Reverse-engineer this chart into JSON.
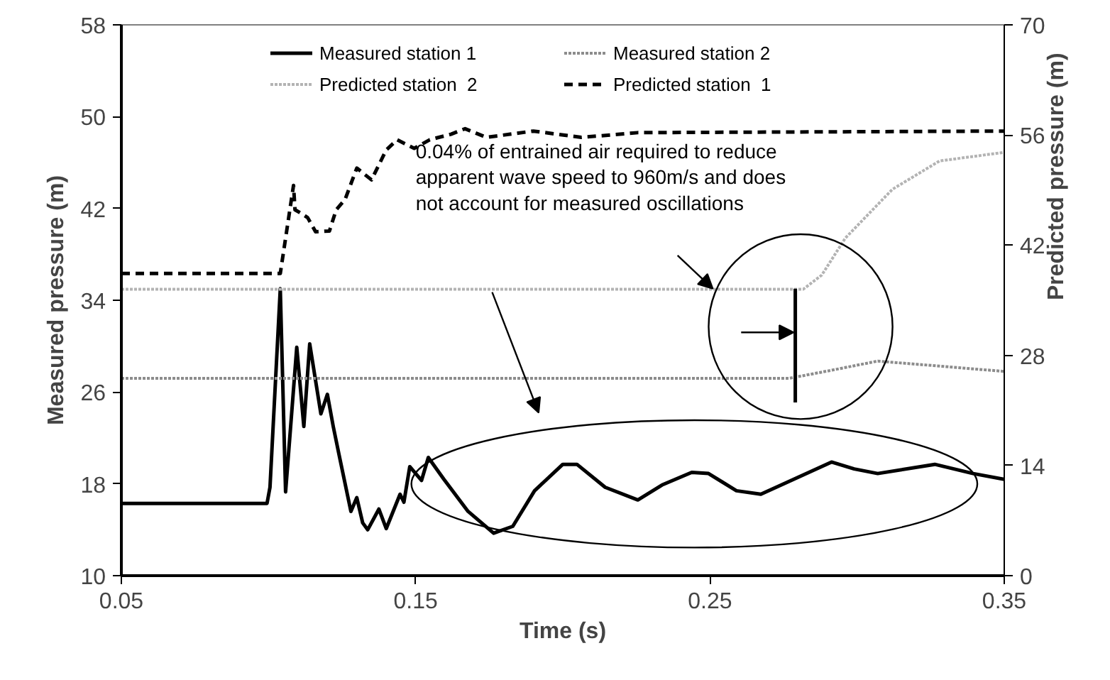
{
  "chart_data": {
    "type": "line",
    "xlabel": "Time (s)",
    "ylabel": "Measured pressure (m)",
    "y2label": "Predicted pressure (m)",
    "xlim": [
      0.05,
      0.35
    ],
    "xticks": [
      0.05,
      0.15,
      0.25,
      0.35
    ],
    "ylim": [
      10,
      58
    ],
    "yticks": [
      10,
      18,
      26,
      34,
      42,
      50,
      58
    ],
    "y2lim": [
      0,
      70
    ],
    "y2ticks": [
      0,
      14,
      28,
      42,
      56,
      70
    ],
    "grid": false,
    "legend": "top",
    "marker": "none",
    "series": [
      {
        "name": "Measured station 1",
        "color": "#000000",
        "line_style": "solid",
        "x": [
          0.05,
          0.0995,
          0.1005,
          0.104,
          0.1058,
          0.1096,
          0.112,
          0.114,
          0.1178,
          0.12,
          0.122,
          0.124,
          0.128,
          0.13,
          0.132,
          0.1337,
          0.1375,
          0.14,
          0.1447,
          0.146,
          0.148,
          0.152,
          0.1543,
          0.1596,
          0.1678,
          0.1765,
          0.183,
          0.1904,
          0.2,
          0.2048,
          0.2144,
          0.2255,
          0.2337,
          0.2438,
          0.2495,
          0.259,
          0.2673,
          0.275,
          0.2913,
          0.299,
          0.307,
          0.3264,
          0.3394,
          0.35
        ],
        "values": [
          16.3,
          16.3,
          17.7,
          35,
          17.3,
          29.9,
          23,
          30.2,
          24.1,
          25.8,
          23,
          20.5,
          15.6,
          16.8,
          14.6,
          14,
          15.8,
          14.1,
          17.1,
          16.4,
          19.5,
          18.3,
          20.3,
          18.4,
          15.6,
          13.7,
          14.3,
          17.4,
          19.7,
          19.7,
          17.7,
          16.6,
          17.9,
          19,
          18.9,
          17.4,
          17.1,
          18,
          19.9,
          19.3,
          18.9,
          19.7,
          18.9,
          18.4
        ]
      },
      {
        "name": "Measured station 2",
        "color": "#8c8c8c",
        "line_style": "dotted",
        "x": [
          0.05,
          0.277,
          0.2913,
          0.307,
          0.35
        ],
        "values": [
          27.2,
          27.2,
          27.9,
          28.7,
          27.8
        ]
      },
      {
        "name": "Predicted station  1",
        "color": "#000000",
        "line_style": "dashed",
        "axis": "y2",
        "x": [
          0.05,
          0.104,
          0.1085,
          0.109,
          0.1113,
          0.1133,
          0.116,
          0.1207,
          0.123,
          0.126,
          0.13,
          0.135,
          0.14,
          0.1437,
          0.1495,
          0.1548,
          0.162,
          0.1668,
          0.174,
          0.19,
          0.2063,
          0.2255,
          0.35
        ],
        "values": [
          38.4,
          38.4,
          49.6,
          46.5,
          46,
          45.5,
          43.7,
          43.8,
          46.5,
          47.8,
          51.8,
          50.3,
          54.1,
          55.4,
          54.3,
          55.4,
          56.1,
          56.8,
          55.7,
          56.5,
          55.7,
          56.3,
          56.5
        ]
      },
      {
        "name": "Predicted station  2",
        "color": "#b3b3b3",
        "line_style": "dotted",
        "axis": "y2",
        "x": [
          0.05,
          0.2817,
          0.288,
          0.296,
          0.312,
          0.328,
          0.35
        ],
        "values": [
          36.4,
          36.4,
          38.2,
          42.9,
          49.1,
          52.7,
          53.8
        ]
      },
      {
        "type": "line",
        "color": "#000000",
        "line_style": "solid",
        "x": [
          0.279,
          0.279
        ],
        "values": [
          35,
          25.1
        ]
      }
    ],
    "annotations": [
      {
        "text": "0.04% of entrained air required to reduce\napparent wave speed to 960m/s and does\nnot account for measured oscillations",
        "x": 0.15,
        "y": 48
      }
    ]
  }
}
